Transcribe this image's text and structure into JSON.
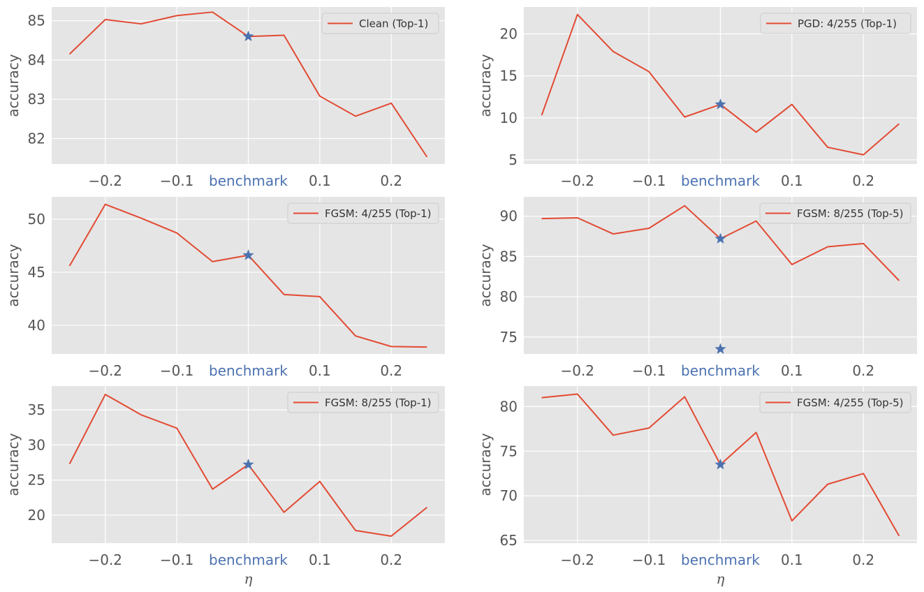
{
  "figure": {
    "benchmark_label": "benchmark",
    "x_tick_labels": [
      "−0.2",
      "−0.1",
      "0.1",
      "0.2"
    ],
    "colors": {
      "line": "#e24a33",
      "marker": "#4c72b0",
      "benchmark_label": "#4c72b0",
      "panel_bg": "#e5e5e5",
      "grid": "#ffffff",
      "tick_text": "#555555"
    }
  },
  "chart_data": [
    {
      "type": "line",
      "ylabel": "accuracy",
      "xlabel": "",
      "legend": "Clean (Top-1)",
      "legend_position": "top-right",
      "grid": true,
      "x": [
        -0.25,
        -0.2,
        -0.15,
        -0.1,
        -0.05,
        0.0,
        0.05,
        0.1,
        0.15,
        0.2,
        0.25
      ],
      "series": [
        {
          "name": "Clean (Top-1)",
          "values": [
            84.15,
            85.03,
            84.92,
            85.13,
            85.22,
            84.6,
            84.63,
            83.08,
            82.57,
            82.9,
            81.53
          ]
        }
      ],
      "markers": [
        {
          "x": 0.0,
          "y": 84.6
        }
      ],
      "ylim": [
        81.35,
        85.35
      ],
      "yticks": [
        82,
        83,
        84,
        85
      ],
      "xlim": [
        -0.275,
        0.275
      ]
    },
    {
      "type": "line",
      "ylabel": "accuracy",
      "xlabel": "",
      "legend": "PGD:  4/255 (Top-1)",
      "legend_position": "top-right",
      "grid": true,
      "x": [
        -0.25,
        -0.2,
        -0.15,
        -0.1,
        -0.05,
        0.0,
        0.05,
        0.1,
        0.15,
        0.2,
        0.25
      ],
      "series": [
        {
          "name": "PGD:  4/255 (Top-1)",
          "values": [
            10.3,
            22.3,
            17.9,
            15.5,
            10.1,
            11.6,
            8.3,
            11.6,
            6.5,
            5.6,
            9.3
          ]
        }
      ],
      "markers": [
        {
          "x": 0.0,
          "y": 11.6
        }
      ],
      "ylim": [
        4.5,
        23.2
      ],
      "yticks": [
        5,
        10,
        15,
        20
      ],
      "xlim": [
        -0.275,
        0.275
      ]
    },
    {
      "type": "line",
      "ylabel": "accuracy",
      "xlabel": "",
      "legend": "FGSM: 4/255 (Top-1)",
      "legend_position": "top-right",
      "grid": true,
      "x": [
        -0.25,
        -0.2,
        -0.15,
        -0.1,
        -0.05,
        0.0,
        0.05,
        0.1,
        0.15,
        0.2,
        0.25
      ],
      "series": [
        {
          "name": "FGSM: 4/255 (Top-1)",
          "values": [
            45.6,
            51.4,
            50.1,
            48.7,
            46.0,
            46.6,
            42.9,
            42.7,
            39.0,
            38.0,
            37.95
          ]
        }
      ],
      "markers": [
        {
          "x": 0.0,
          "y": 46.6
        }
      ],
      "ylim": [
        37.3,
        52.1
      ],
      "yticks": [
        40,
        45,
        50
      ],
      "xlim": [
        -0.275,
        0.275
      ]
    },
    {
      "type": "line",
      "ylabel": "accuracy",
      "xlabel": "",
      "legend": "FGSM: 8/255 (Top-5)",
      "legend_position": "top-right",
      "grid": true,
      "x": [
        -0.25,
        -0.2,
        -0.15,
        -0.1,
        -0.05,
        0.0,
        0.05,
        0.1,
        0.15,
        0.2,
        0.25
      ],
      "series": [
        {
          "name": "FGSM: 8/255 (Top-5)",
          "values": [
            89.7,
            89.8,
            87.8,
            88.5,
            91.3,
            87.2,
            89.4,
            84.0,
            86.2,
            86.6,
            82.0
          ]
        }
      ],
      "markers": [
        {
          "x": 0.0,
          "y": 87.2
        },
        {
          "x": 0.0,
          "y": 73.5
        }
      ],
      "ylim": [
        72.9,
        92.4
      ],
      "yticks": [
        75,
        80,
        85,
        90
      ],
      "xlim": [
        -0.275,
        0.275
      ]
    },
    {
      "type": "line",
      "ylabel": "accuracy",
      "xlabel": "η",
      "legend": "FGSM: 8/255 (Top-1)",
      "legend_position": "top-right",
      "grid": true,
      "x": [
        -0.25,
        -0.2,
        -0.15,
        -0.1,
        -0.05,
        0.0,
        0.05,
        0.1,
        0.15,
        0.2,
        0.25
      ],
      "series": [
        {
          "name": "FGSM: 8/255 (Top-1)",
          "values": [
            27.3,
            37.2,
            34.3,
            32.4,
            23.7,
            27.2,
            20.4,
            24.8,
            17.8,
            17.0,
            21.1
          ]
        }
      ],
      "markers": [
        {
          "x": 0.0,
          "y": 27.2
        }
      ],
      "ylim": [
        16.0,
        38.4
      ],
      "yticks": [
        20,
        25,
        30,
        35
      ],
      "xlim": [
        -0.275,
        0.275
      ]
    },
    {
      "type": "line",
      "ylabel": "accuracy",
      "xlabel": "η",
      "legend": "FGSM: 4/255 (Top-5)",
      "legend_position": "top-right",
      "grid": true,
      "x": [
        -0.25,
        -0.2,
        -0.15,
        -0.1,
        -0.05,
        0.0,
        0.05,
        0.1,
        0.15,
        0.2,
        0.25
      ],
      "series": [
        {
          "name": "FGSM: 4/255 (Top-5)",
          "values": [
            81.0,
            81.4,
            76.8,
            77.6,
            81.1,
            73.5,
            77.1,
            67.2,
            71.3,
            72.5,
            65.5
          ]
        }
      ],
      "markers": [
        {
          "x": 0.0,
          "y": 73.5
        }
      ],
      "ylim": [
        64.7,
        82.3
      ],
      "yticks": [
        65,
        70,
        75,
        80
      ],
      "xlim": [
        -0.275,
        0.275
      ]
    }
  ]
}
